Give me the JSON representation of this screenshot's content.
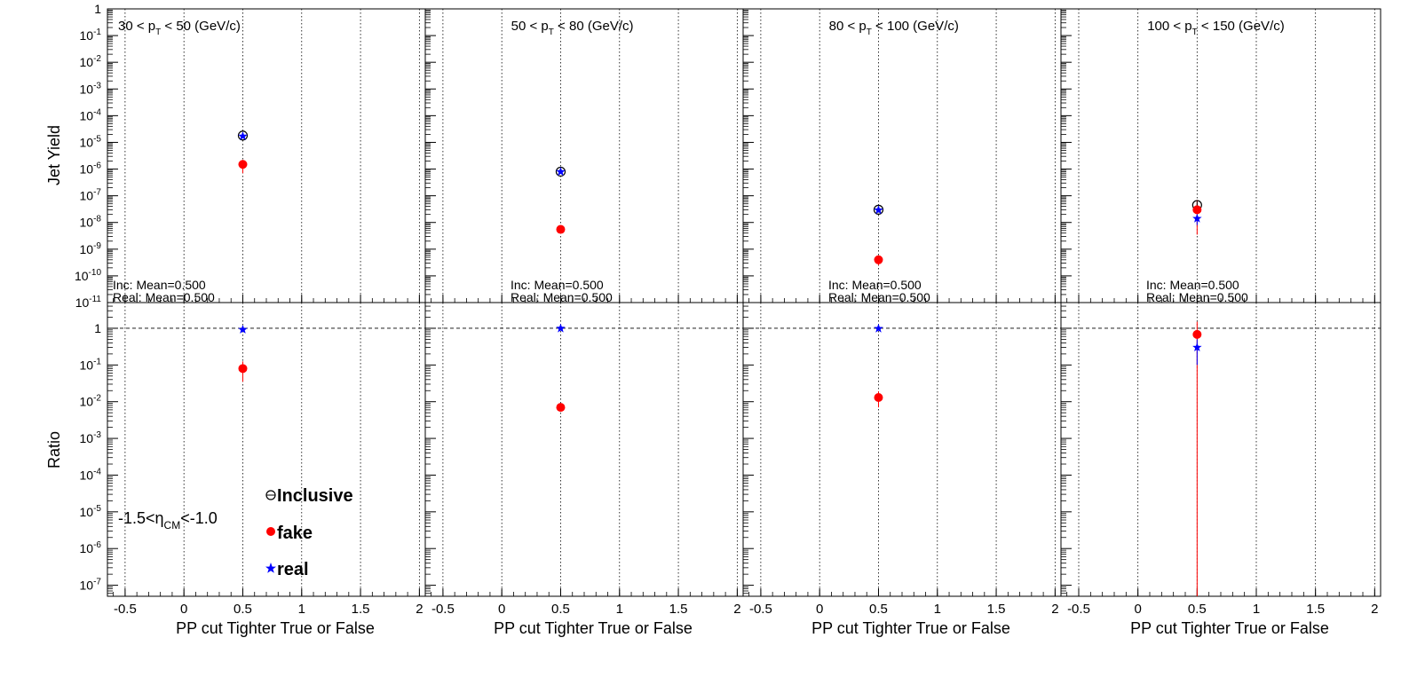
{
  "figure": {
    "top_ylabel": "Jet Yield",
    "bottom_ylabel": "Ratio",
    "xlabel": "PP cut Tighter True or False",
    "eta_label": {
      "prefix": "-1.5<η",
      "sub": "CM",
      "suffix": "<-1.0"
    },
    "stats": [
      "Inc: Mean=0.500",
      "Real: Mean=0.500"
    ],
    "legend": [
      {
        "label": "Inclusive",
        "marker": "open-circle",
        "color": "#000000"
      },
      {
        "label": "fake",
        "marker": "filled-circle",
        "color": "#ff0000"
      },
      {
        "label": "real",
        "marker": "star",
        "color": "#0000ff"
      }
    ],
    "colors": {
      "inclusive": "#000000",
      "fake": "#ff0000",
      "real": "#0000ff"
    }
  },
  "chart_data": {
    "type": "scatter",
    "x_ticks": [
      "-0.5",
      "0",
      "0.5",
      "1",
      "1.5",
      "2"
    ],
    "xlim": [
      -0.65,
      2.05
    ],
    "top_axis": {
      "scale": "log",
      "ylim_exp": [
        -11,
        0
      ],
      "tick_labels": [
        {
          "e": 0,
          "t": "1"
        },
        {
          "e": -1,
          "t": "10",
          "s": "-1"
        },
        {
          "e": -2,
          "t": "10",
          "s": "-2"
        },
        {
          "e": -3,
          "t": "10",
          "s": "-3"
        },
        {
          "e": -4,
          "t": "10",
          "s": "-4"
        },
        {
          "e": -5,
          "t": "10",
          "s": "-5"
        },
        {
          "e": -6,
          "t": "10",
          "s": "-6"
        },
        {
          "e": -7,
          "t": "10",
          "s": "-7"
        },
        {
          "e": -8,
          "t": "10",
          "s": "-8"
        },
        {
          "e": -9,
          "t": "10",
          "s": "-9"
        },
        {
          "e": -10,
          "t": "10",
          "s": "-10"
        },
        {
          "e": -11,
          "t": "10",
          "s": "-11"
        }
      ]
    },
    "bottom_axis": {
      "scale": "log",
      "ylim_exp": [
        -7.3,
        0.7
      ],
      "tick_labels": [
        {
          "e": 0,
          "t": "1"
        },
        {
          "e": -1,
          "t": "10",
          "s": "-1"
        },
        {
          "e": -2,
          "t": "10",
          "s": "-2"
        },
        {
          "e": -3,
          "t": "10",
          "s": "-3"
        },
        {
          "e": -4,
          "t": "10",
          "s": "-4"
        },
        {
          "e": -5,
          "t": "10",
          "s": "-5"
        },
        {
          "e": -6,
          "t": "10",
          "s": "-6"
        },
        {
          "e": -7,
          "t": "10",
          "s": "-7"
        }
      ]
    },
    "panels": [
      {
        "title": {
          "pre": "30 < p",
          "sub": "T",
          "post": " < 50 (GeV/c)"
        },
        "x": 0.5,
        "yield": {
          "inclusive": 1.8e-05,
          "real": 1.7e-05,
          "fake": 1.5e-06,
          "fake_err": [
            7e-07,
            2.2e-06
          ]
        },
        "ratio": {
          "real": 0.92,
          "fake": 0.08,
          "fake_err": [
            0.035,
            0.125
          ]
        }
      },
      {
        "title": {
          "pre": "50 < p",
          "sub": "T",
          "post": " < 80 (GeV/c)"
        },
        "x": 0.5,
        "yield": {
          "inclusive": 8e-07,
          "real": 7.9e-07,
          "fake": 5.5e-09,
          "fake_err": [
            4.5e-09,
            6.5e-09
          ]
        },
        "ratio": {
          "real": 0.99,
          "fake": 0.007,
          "fake_err": [
            0.006,
            0.008
          ]
        }
      },
      {
        "title": {
          "pre": "80 < p",
          "sub": "T",
          "post": " < 100 (GeV/c)"
        },
        "x": 0.5,
        "yield": {
          "inclusive": 3e-08,
          "real": 2.9e-08,
          "fake": 4e-10,
          "fake_err": [
            2.5e-10,
            5.5e-10
          ]
        },
        "ratio": {
          "real": 0.98,
          "fake": 0.013,
          "fake_err": [
            0.007,
            0.019
          ]
        }
      },
      {
        "title": {
          "pre": "100 < p",
          "sub": "T",
          "post": " < 150 (GeV/c)"
        },
        "x": 0.5,
        "yield": {
          "inclusive": 4.5e-08,
          "inclusive_err": [
            3.5e-08,
            6e-08
          ],
          "real": 1.4e-08,
          "real_err": [
            8e-09,
            2e-08
          ],
          "fake": 3e-08,
          "fake_err": [
            3.5e-09,
            7e-08
          ]
        },
        "ratio": {
          "real": 0.3,
          "real_err": [
            0.1,
            0.5
          ],
          "fake": 0.68,
          "fake_err": [
            1e-09,
            1.5
          ]
        }
      }
    ]
  }
}
